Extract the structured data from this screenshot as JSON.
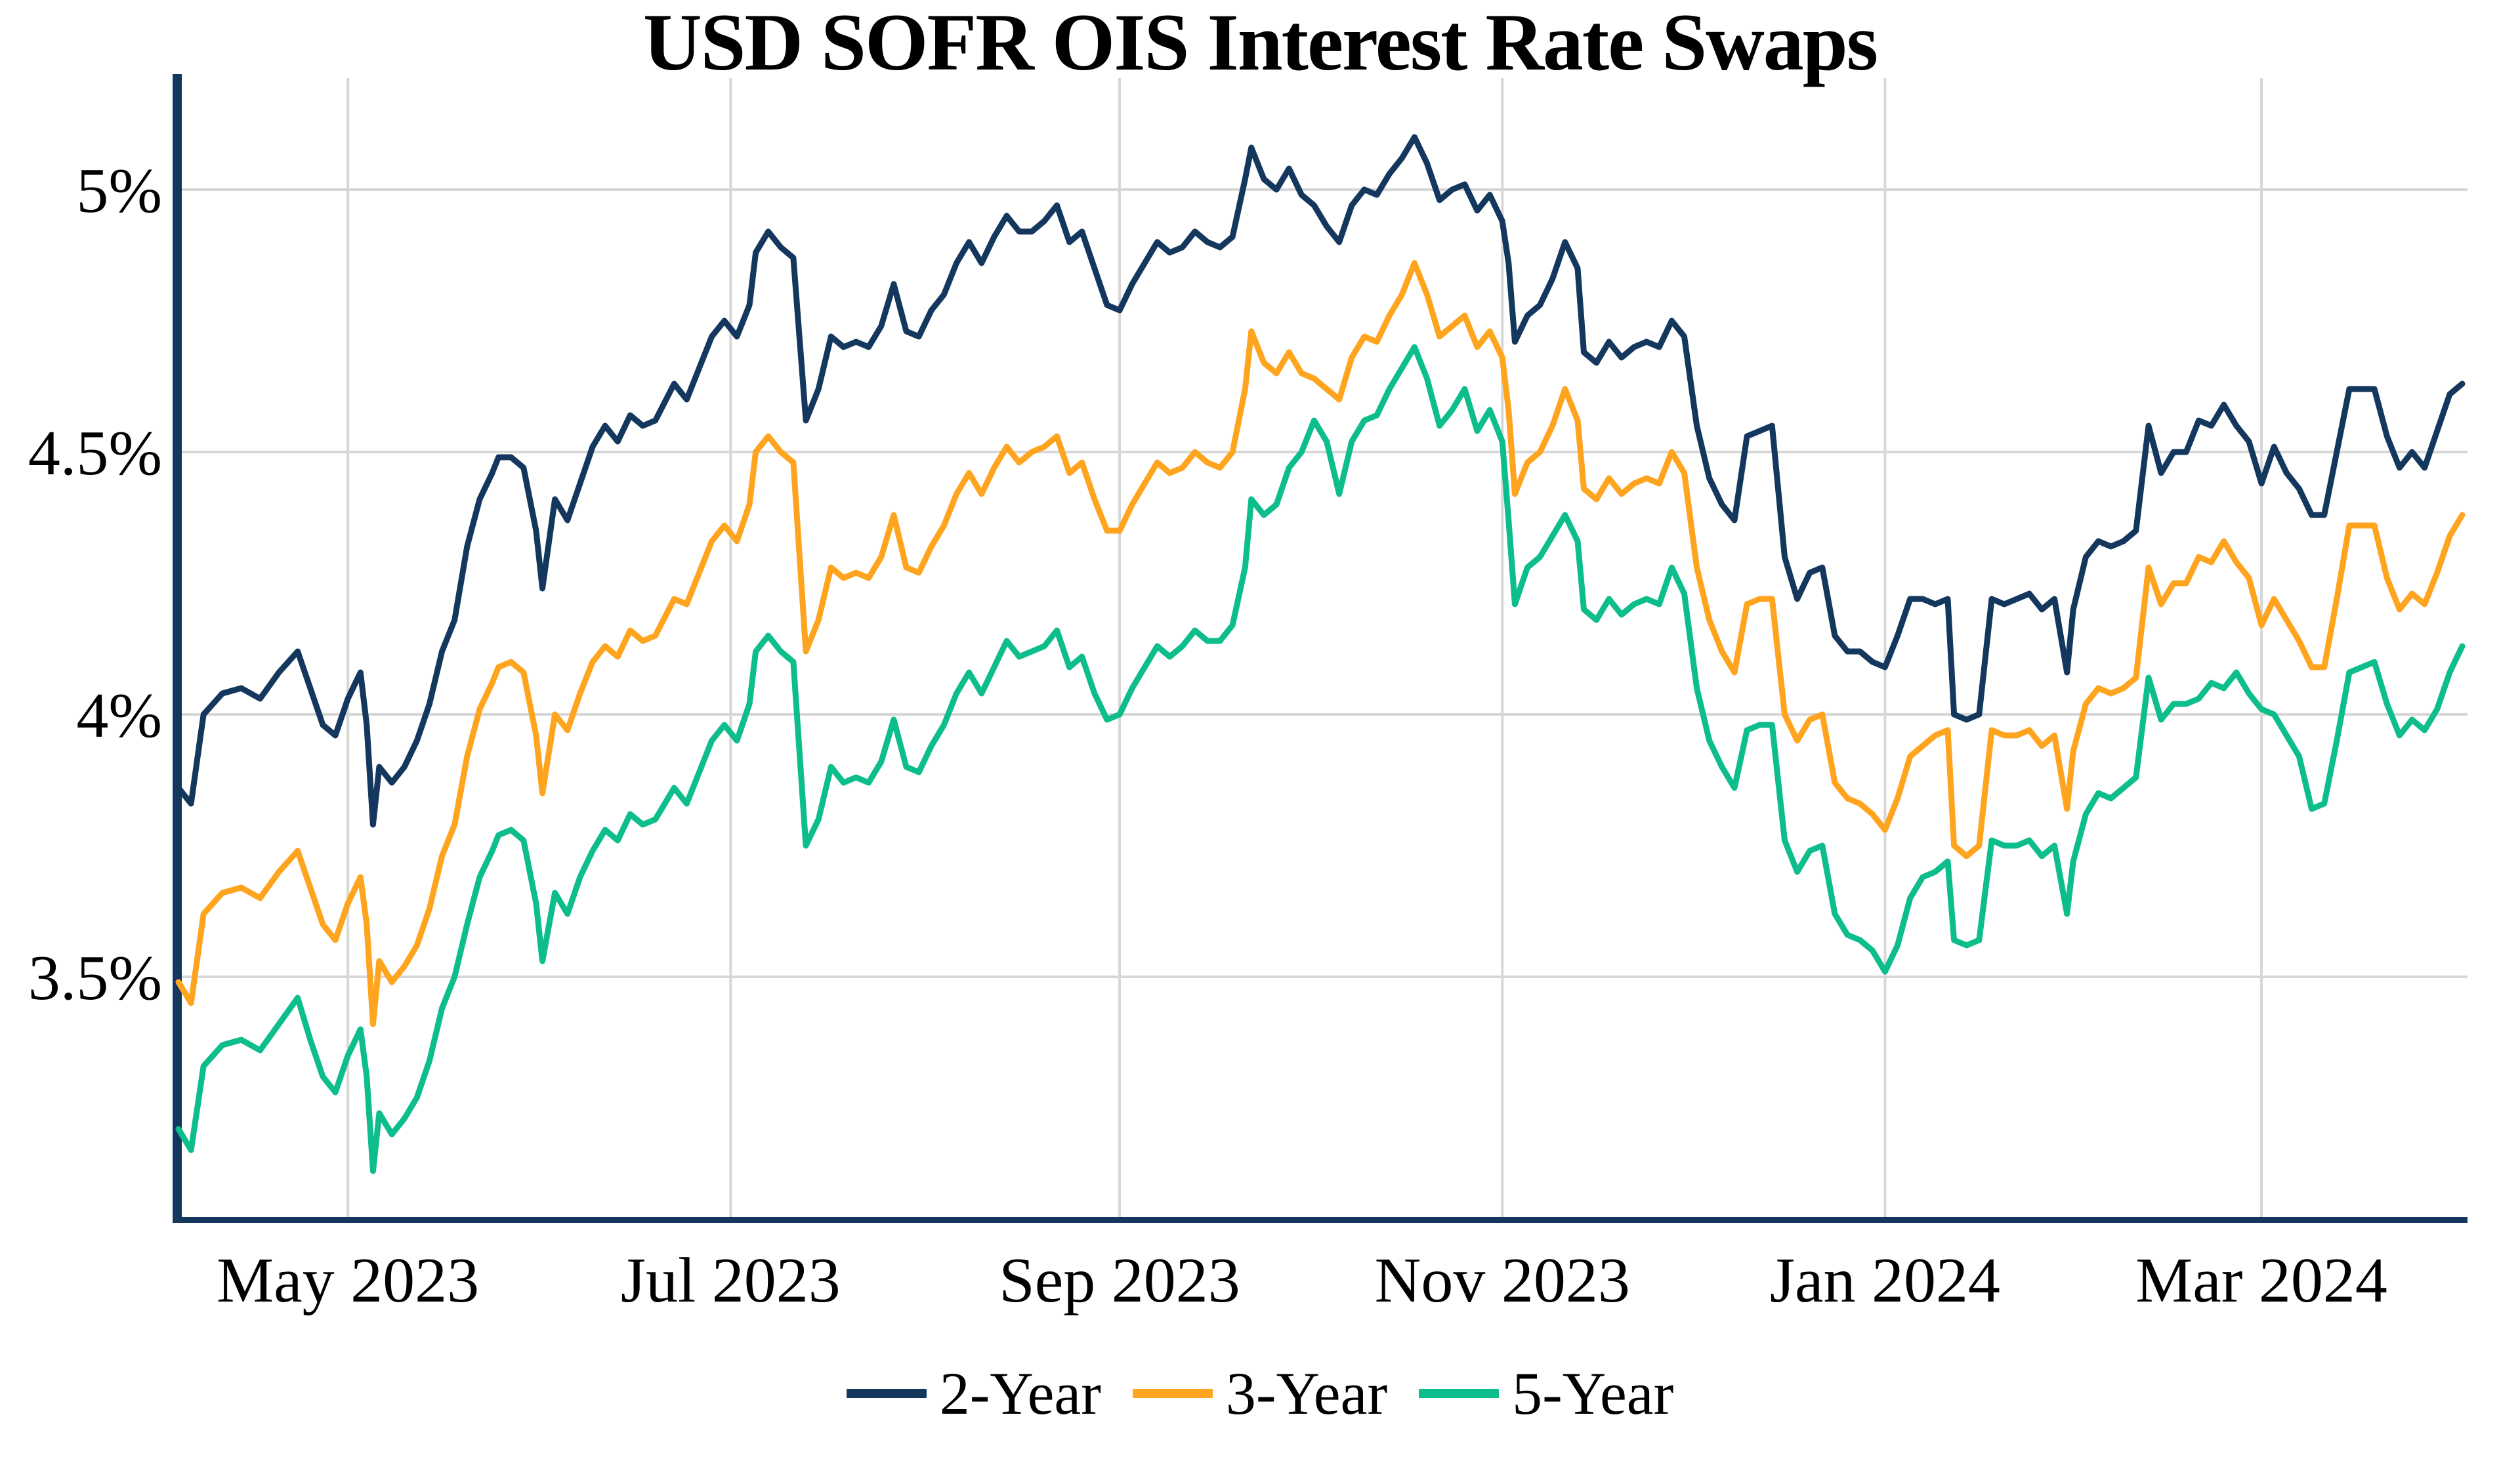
{
  "chart": {
    "title": "USD SOFR OIS Interest Rate Swaps"
  },
  "colors": {
    "axis": "#14375E",
    "gridline": "#D7D7D7",
    "background": "#FFFFFF",
    "series_2y": "#14375E",
    "series_3y": "#FFA41E",
    "series_5y": "#0EBD8C"
  },
  "chart_data": {
    "type": "line",
    "title": "USD SOFR OIS Interest Rate Swaps",
    "ylabel": "",
    "xlabel": "",
    "grid": true,
    "legend_position": "bottom-center",
    "y_axis": {
      "tick_labels": [
        "5%",
        "4.5%",
        "4%",
        "3.5%"
      ],
      "tick_values": [
        5,
        4.5,
        4,
        3.5
      ],
      "range": [
        3.04,
        5.22
      ]
    },
    "x_axis": {
      "tick_labels": [
        "May 2023",
        "Jul 2023",
        "Sep 2023",
        "Nov 2023",
        "Jan 2024",
        "Mar 2024"
      ],
      "tick_days": [
        27,
        88,
        150,
        211,
        272,
        332
      ],
      "range_days": [
        0,
        367
      ]
    },
    "x_days": [
      0,
      2,
      4,
      7,
      10,
      13,
      16,
      19,
      21,
      23,
      25,
      27,
      29,
      30,
      31,
      32,
      34,
      36,
      38,
      40,
      42,
      44,
      46,
      48,
      50,
      51,
      53,
      55,
      57,
      58,
      60,
      62,
      64,
      66,
      68,
      70,
      72,
      74,
      76,
      79,
      81,
      83,
      85,
      87,
      89,
      91,
      92,
      94,
      96,
      98,
      100,
      102,
      104,
      106,
      108,
      110,
      112,
      114,
      116,
      118,
      120,
      122,
      124,
      126,
      128,
      130,
      132,
      134,
      136,
      138,
      140,
      142,
      144,
      146,
      148,
      150,
      152,
      154,
      156,
      158,
      160,
      162,
      164,
      166,
      168,
      170,
      171,
      173,
      175,
      177,
      179,
      181,
      183,
      185,
      187,
      189,
      191,
      193,
      195,
      197,
      199,
      201,
      203,
      205,
      207,
      209,
      211,
      212,
      213,
      215,
      217,
      219,
      221,
      223,
      224,
      226,
      228,
      230,
      232,
      234,
      236,
      238,
      240,
      242,
      244,
      246,
      248,
      250,
      252,
      254,
      256,
      258,
      260,
      262,
      264,
      266,
      268,
      270,
      272,
      274,
      276,
      278,
      280,
      282,
      283,
      285,
      287,
      289,
      291,
      293,
      295,
      297,
      299,
      301,
      302,
      304,
      306,
      308,
      310,
      312,
      314,
      316,
      318,
      320,
      322,
      324,
      326,
      328,
      330,
      332,
      334,
      336,
      338,
      340,
      342,
      344,
      346,
      348,
      350,
      352,
      354,
      356,
      358,
      360,
      362,
      364
    ],
    "series": [
      {
        "name": "2-Year",
        "color": "#14375E",
        "values": [
          3.86,
          3.83,
          4.0,
          4.04,
          4.05,
          4.03,
          4.08,
          4.12,
          4.05,
          3.98,
          3.96,
          4.03,
          4.08,
          3.98,
          3.79,
          3.9,
          3.87,
          3.9,
          3.95,
          4.02,
          4.12,
          4.18,
          4.32,
          4.41,
          4.46,
          4.49,
          4.49,
          4.47,
          4.35,
          4.24,
          4.41,
          4.37,
          4.44,
          4.51,
          4.55,
          4.52,
          4.57,
          4.55,
          4.56,
          4.63,
          4.6,
          4.66,
          4.72,
          4.75,
          4.72,
          4.78,
          4.88,
          4.92,
          4.89,
          4.87,
          4.56,
          4.62,
          4.72,
          4.7,
          4.71,
          4.7,
          4.74,
          4.82,
          4.73,
          4.72,
          4.77,
          4.8,
          4.86,
          4.9,
          4.86,
          4.91,
          4.95,
          4.92,
          4.92,
          4.94,
          4.97,
          4.9,
          4.92,
          4.85,
          4.78,
          4.77,
          4.82,
          4.86,
          4.9,
          4.88,
          4.89,
          4.92,
          4.9,
          4.89,
          4.91,
          5.02,
          5.08,
          5.02,
          5.0,
          5.04,
          4.99,
          4.97,
          4.93,
          4.9,
          4.97,
          5.0,
          4.99,
          5.03,
          5.06,
          5.1,
          5.05,
          4.98,
          5.0,
          5.01,
          4.96,
          4.99,
          4.94,
          4.86,
          4.71,
          4.76,
          4.78,
          4.83,
          4.9,
          4.85,
          4.69,
          4.67,
          4.71,
          4.68,
          4.7,
          4.71,
          4.7,
          4.75,
          4.72,
          4.55,
          4.45,
          4.4,
          4.37,
          4.53,
          4.54,
          4.55,
          4.3,
          4.22,
          4.27,
          4.28,
          4.15,
          4.12,
          4.12,
          4.1,
          4.09,
          4.15,
          4.22,
          4.22,
          4.21,
          4.22,
          4.0,
          3.99,
          4.0,
          4.22,
          4.21,
          4.22,
          4.23,
          4.2,
          4.22,
          4.08,
          4.2,
          4.3,
          4.33,
          4.32,
          4.33,
          4.35,
          4.55,
          4.46,
          4.5,
          4.5,
          4.56,
          4.55,
          4.59,
          4.55,
          4.52,
          4.44,
          4.51,
          4.46,
          4.43,
          4.38,
          4.38,
          4.5,
          4.62,
          4.62,
          4.62,
          4.53,
          4.47,
          4.5,
          4.47,
          4.54,
          4.61,
          4.63
        ]
      },
      {
        "name": "3-Year",
        "color": "#FFA41E",
        "values": [
          3.49,
          3.45,
          3.62,
          3.66,
          3.67,
          3.65,
          3.7,
          3.74,
          3.67,
          3.6,
          3.57,
          3.64,
          3.69,
          3.6,
          3.41,
          3.53,
          3.49,
          3.52,
          3.56,
          3.63,
          3.73,
          3.79,
          3.92,
          4.01,
          4.06,
          4.09,
          4.1,
          4.08,
          3.96,
          3.85,
          4.0,
          3.97,
          4.04,
          4.1,
          4.13,
          4.11,
          4.16,
          4.14,
          4.15,
          4.22,
          4.21,
          4.27,
          4.33,
          4.36,
          4.33,
          4.4,
          4.5,
          4.53,
          4.5,
          4.48,
          4.12,
          4.18,
          4.28,
          4.26,
          4.27,
          4.26,
          4.3,
          4.38,
          4.28,
          4.27,
          4.32,
          4.36,
          4.42,
          4.46,
          4.42,
          4.47,
          4.51,
          4.48,
          4.5,
          4.51,
          4.53,
          4.46,
          4.48,
          4.41,
          4.35,
          4.35,
          4.4,
          4.44,
          4.48,
          4.46,
          4.47,
          4.5,
          4.48,
          4.47,
          4.5,
          4.62,
          4.73,
          4.67,
          4.65,
          4.69,
          4.65,
          4.64,
          4.62,
          4.6,
          4.68,
          4.72,
          4.71,
          4.76,
          4.8,
          4.86,
          4.8,
          4.72,
          4.74,
          4.76,
          4.7,
          4.73,
          4.68,
          4.58,
          4.42,
          4.48,
          4.5,
          4.55,
          4.62,
          4.56,
          4.43,
          4.41,
          4.45,
          4.42,
          4.44,
          4.45,
          4.44,
          4.5,
          4.46,
          4.28,
          4.18,
          4.12,
          4.08,
          4.21,
          4.22,
          4.22,
          4.0,
          3.95,
          3.99,
          4.0,
          3.87,
          3.84,
          3.83,
          3.81,
          3.78,
          3.84,
          3.92,
          3.94,
          3.96,
          3.97,
          3.75,
          3.73,
          3.75,
          3.97,
          3.96,
          3.96,
          3.97,
          3.94,
          3.96,
          3.82,
          3.93,
          4.02,
          4.05,
          4.04,
          4.05,
          4.07,
          4.28,
          4.21,
          4.25,
          4.25,
          4.3,
          4.29,
          4.33,
          4.29,
          4.26,
          4.17,
          4.22,
          4.18,
          4.14,
          4.09,
          4.09,
          4.22,
          4.36,
          4.36,
          4.36,
          4.26,
          4.2,
          4.23,
          4.21,
          4.27,
          4.34,
          4.38
        ]
      },
      {
        "name": "5-Year",
        "color": "#0EBD8C",
        "values": [
          3.21,
          3.17,
          3.33,
          3.37,
          3.38,
          3.36,
          3.41,
          3.46,
          3.38,
          3.31,
          3.28,
          3.35,
          3.4,
          3.31,
          3.13,
          3.24,
          3.2,
          3.23,
          3.27,
          3.34,
          3.44,
          3.5,
          3.6,
          3.69,
          3.74,
          3.77,
          3.78,
          3.76,
          3.64,
          3.53,
          3.66,
          3.62,
          3.69,
          3.74,
          3.78,
          3.76,
          3.81,
          3.79,
          3.8,
          3.86,
          3.83,
          3.89,
          3.95,
          3.98,
          3.95,
          4.02,
          4.12,
          4.15,
          4.12,
          4.1,
          3.75,
          3.8,
          3.9,
          3.87,
          3.88,
          3.87,
          3.91,
          3.99,
          3.9,
          3.89,
          3.94,
          3.98,
          4.04,
          4.08,
          4.04,
          4.09,
          4.14,
          4.11,
          4.12,
          4.13,
          4.16,
          4.09,
          4.11,
          4.04,
          3.99,
          4.0,
          4.05,
          4.09,
          4.13,
          4.11,
          4.13,
          4.16,
          4.14,
          4.14,
          4.17,
          4.28,
          4.41,
          4.38,
          4.4,
          4.47,
          4.5,
          4.56,
          4.52,
          4.42,
          4.52,
          4.56,
          4.57,
          4.62,
          4.66,
          4.7,
          4.64,
          4.55,
          4.58,
          4.62,
          4.54,
          4.58,
          4.52,
          4.37,
          4.21,
          4.28,
          4.3,
          4.34,
          4.38,
          4.33,
          4.2,
          4.18,
          4.22,
          4.19,
          4.21,
          4.22,
          4.21,
          4.28,
          4.23,
          4.05,
          3.95,
          3.9,
          3.86,
          3.97,
          3.98,
          3.98,
          3.76,
          3.7,
          3.74,
          3.75,
          3.62,
          3.58,
          3.57,
          3.55,
          3.51,
          3.56,
          3.65,
          3.69,
          3.7,
          3.72,
          3.57,
          3.56,
          3.57,
          3.76,
          3.75,
          3.75,
          3.76,
          3.73,
          3.75,
          3.62,
          3.72,
          3.81,
          3.85,
          3.84,
          3.86,
          3.88,
          4.07,
          3.99,
          4.02,
          4.02,
          4.03,
          4.06,
          4.05,
          4.08,
          4.04,
          4.01,
          4.0,
          3.96,
          3.92,
          3.82,
          3.83,
          3.95,
          4.08,
          4.09,
          4.1,
          4.02,
          3.96,
          3.99,
          3.97,
          4.01,
          4.08,
          4.13
        ]
      }
    ]
  }
}
